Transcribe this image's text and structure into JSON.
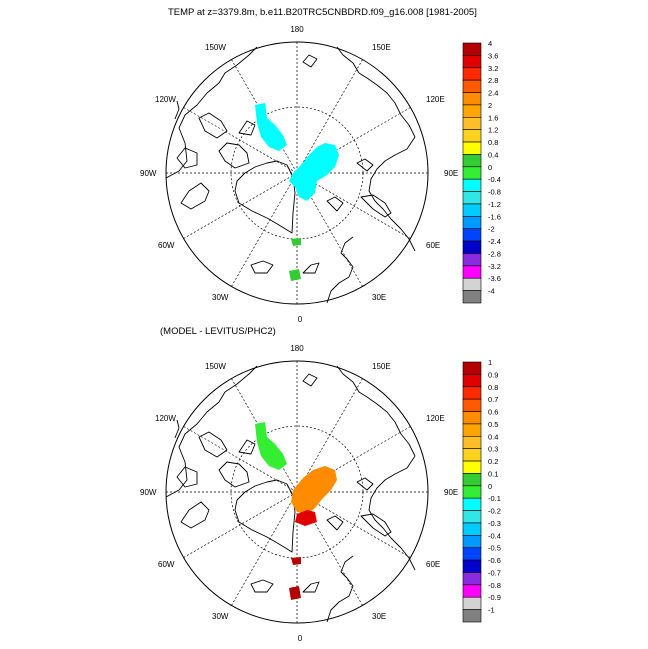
{
  "figure": {
    "title": "TEMP at z=3379.8m, b.e11.B20TRC5CNBDRD.f09_g16.008 [1981-2005]",
    "subtitle": "(MODEL - LEVITUS/PHC2)"
  },
  "longitude_labels": {
    "top": "180",
    "bottom": "0",
    "left": "90W",
    "right": "90E",
    "upper_left_outer": "150W",
    "upper_left_inner": "120W",
    "upper_right_outer": "150E",
    "upper_right_inner": "120E",
    "lower_left_inner": "60W",
    "lower_left_outer": "30W",
    "lower_right_inner": "60E",
    "lower_right_outer": "30E"
  },
  "colorbars": [
    {
      "labels": [
        "4",
        "3.6",
        "3.2",
        "2.8",
        "2.4",
        "2",
        "1.6",
        "1.2",
        "0.8",
        "0.4",
        "0",
        "-0.4",
        "-0.8",
        "-1.2",
        "-1.6",
        "-2",
        "-2.4",
        "-2.8",
        "-3.2",
        "-3.6",
        "-4"
      ],
      "colors": [
        "#b30000",
        "#e00000",
        "#ff2a00",
        "#ff5a00",
        "#ff8c00",
        "#ffa500",
        "#ffbe28",
        "#ffd21e",
        "#ffff00",
        "#33cc33",
        "#33ee33",
        "#00ffff",
        "#33e6e6",
        "#00ccff",
        "#0099ff",
        "#0044ff",
        "#0000cc",
        "#8a2be2",
        "#ff00ff",
        "#d3d3d3",
        "#808080"
      ]
    },
    {
      "labels": [
        "1",
        "0.9",
        "0.8",
        "0.7",
        "0.6",
        "0.5",
        "0.4",
        "0.3",
        "0.2",
        "0.1",
        "0",
        "-0.1",
        "-0.2",
        "-0.3",
        "-0.4",
        "-0.5",
        "-0.6",
        "-0.7",
        "-0.8",
        "-0.9",
        "-1"
      ],
      "colors": [
        "#b30000",
        "#e00000",
        "#ff2a00",
        "#ff5a00",
        "#ff8c00",
        "#ffa500",
        "#ffbe28",
        "#ffd21e",
        "#ffff00",
        "#33cc33",
        "#33ee33",
        "#00ffff",
        "#33e6e6",
        "#00ccff",
        "#0099ff",
        "#0044ff",
        "#0000cc",
        "#8a2be2",
        "#ff00ff",
        "#d3d3d3",
        "#808080"
      ]
    }
  ],
  "maps": [
    {
      "name": "model-temperature",
      "patches": [
        {
          "label": "canada-basin",
          "color": "#00ffff"
        },
        {
          "label": "eurasian-basin",
          "color": "#00ffff"
        },
        {
          "label": "fram-strait-1",
          "color": "#33cc33"
        },
        {
          "label": "fram-strait-2",
          "color": "#33cc33"
        }
      ]
    },
    {
      "name": "model-minus-levitus",
      "patches": [
        {
          "label": "canada-basin",
          "color": "#33ee33"
        },
        {
          "label": "eurasian-basin",
          "color": "#ff8c00"
        },
        {
          "label": "eurasian-basin-hot",
          "color": "#e00000"
        },
        {
          "label": "fram-strait-1",
          "color": "#b30000"
        },
        {
          "label": "fram-strait-2",
          "color": "#b30000"
        }
      ]
    }
  ]
}
